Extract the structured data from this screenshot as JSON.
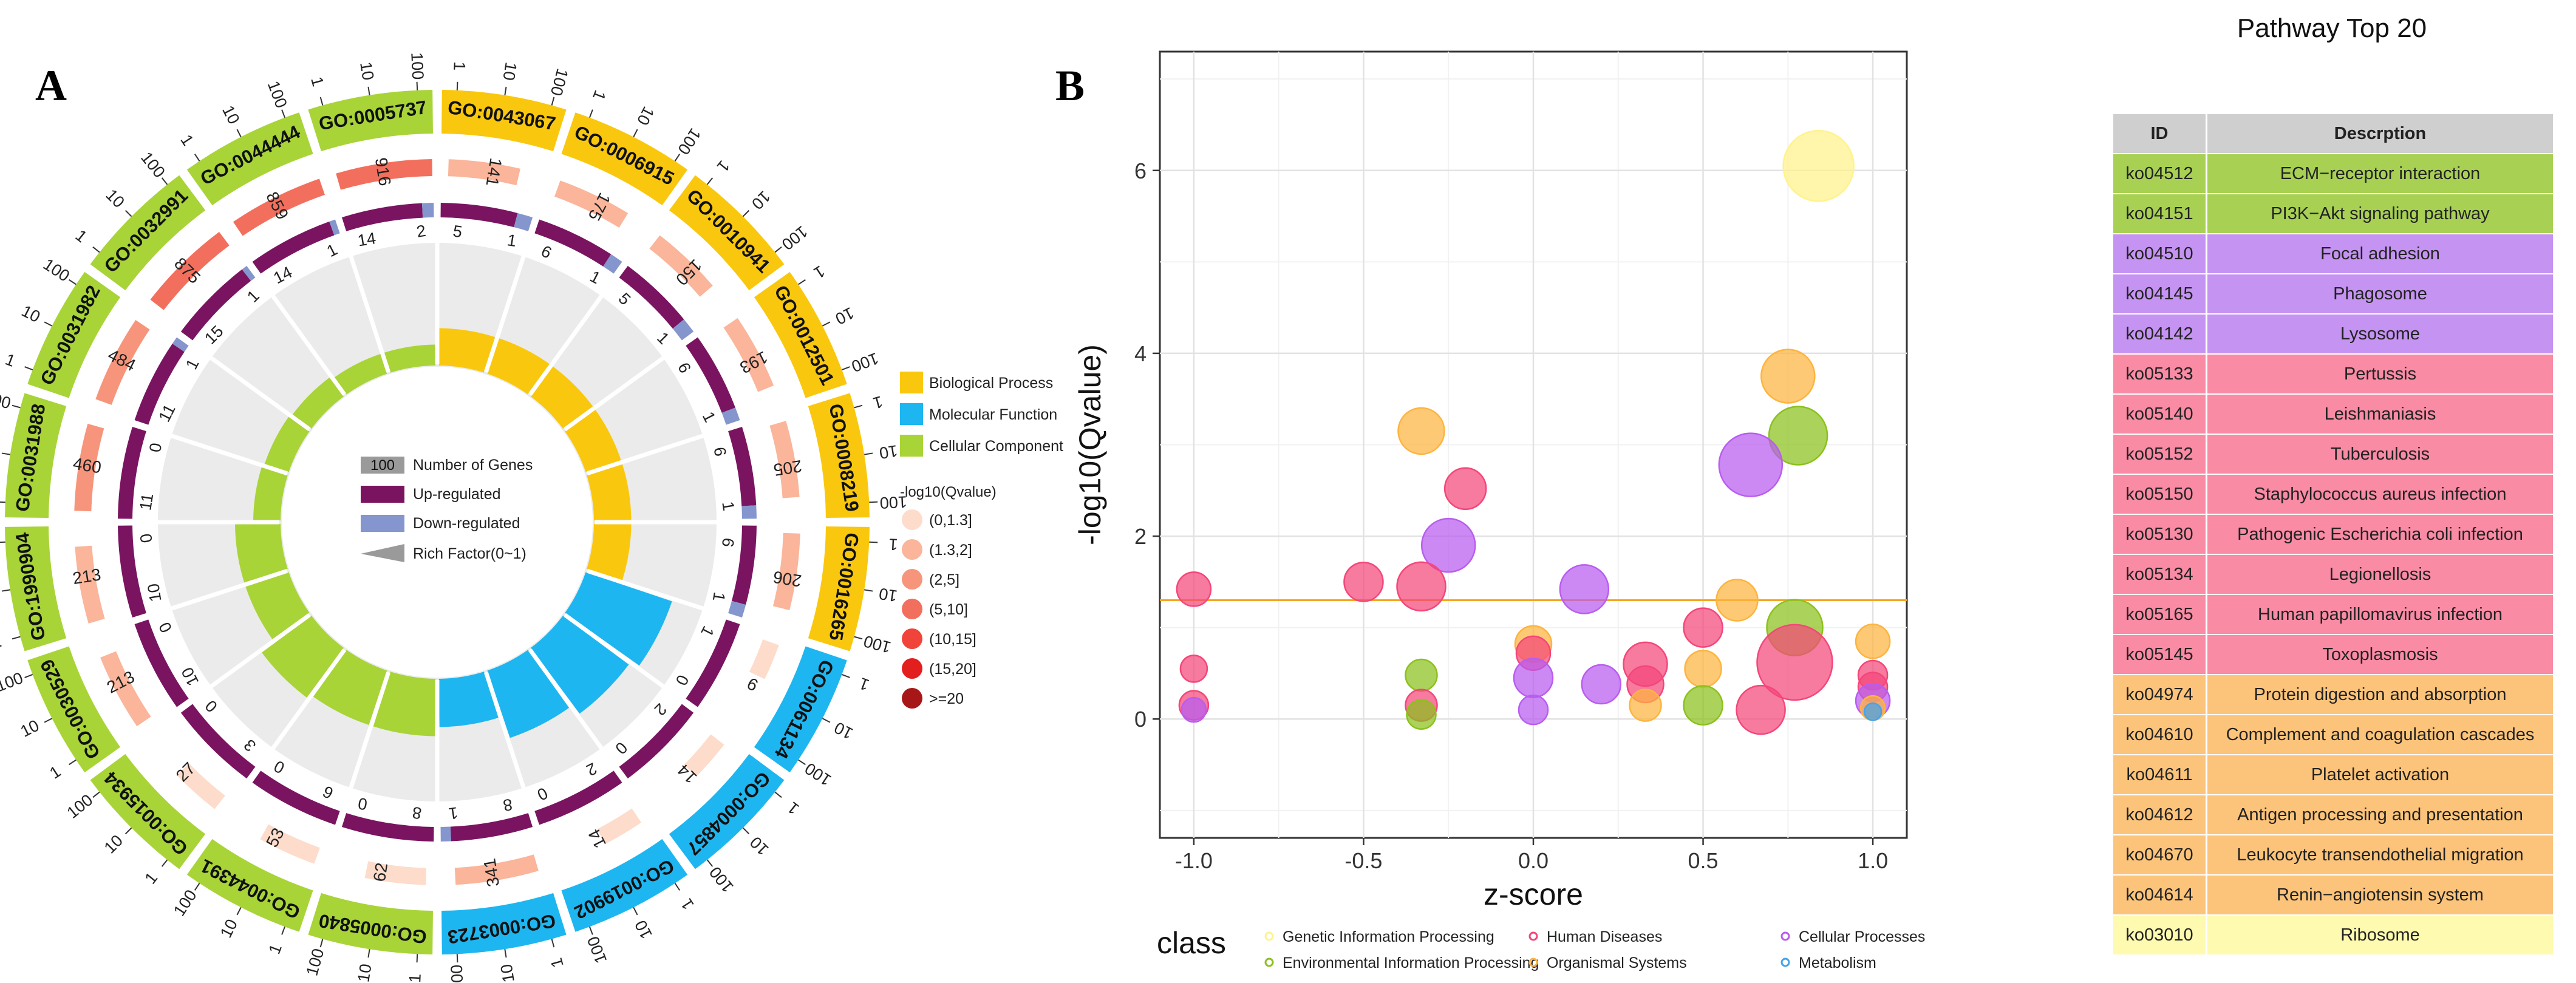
{
  "panel_a_label": "A",
  "panel_b_label": "B",
  "table_title": "Pathway Top 20",
  "chart_data": [
    {
      "type": "circular-go",
      "go_terms": [
        {
          "id": "GO:0043067",
          "cat": "bp",
          "genes": 141,
          "up": 5,
          "down": 1,
          "rich": 0.33
        },
        {
          "id": "GO:0006915",
          "cat": "bp",
          "genes": 175,
          "up": 6,
          "down": 1,
          "rich": 0.33
        },
        {
          "id": "GO:0010941",
          "cat": "bp",
          "genes": 150,
          "up": 5,
          "down": 1,
          "rich": 0.33
        },
        {
          "id": "GO:0012501",
          "cat": "bp",
          "genes": 193,
          "up": 6,
          "down": 1,
          "rich": 0.33
        },
        {
          "id": "GO:0008219",
          "cat": "bp",
          "genes": 205,
          "up": 6,
          "down": 1,
          "rich": 0.33
        },
        {
          "id": "GO:0016265",
          "cat": "bp",
          "genes": 206,
          "up": 6,
          "down": 1,
          "rich": 0.33
        },
        {
          "id": "GO:0061134",
          "cat": "mf",
          "genes": 9,
          "up": 1,
          "down": 0,
          "rich": 0.92
        },
        {
          "id": "GO:0004857",
          "cat": "mf",
          "genes": 14,
          "up": 2,
          "down": 0,
          "rich": 0.82
        },
        {
          "id": "GO:0019902",
          "cat": "mf",
          "genes": 14,
          "up": 2,
          "down": 0,
          "rich": 0.7
        },
        {
          "id": "GO:0003723",
          "cat": "mf",
          "genes": 341,
          "up": 8,
          "down": 1,
          "rich": 0.45
        },
        {
          "id": "GO:0005840",
          "cat": "cc",
          "genes": 62,
          "up": 8,
          "down": 0,
          "rich": 0.55
        },
        {
          "id": "GO:0044391",
          "cat": "cc",
          "genes": 53,
          "up": 6,
          "down": 0,
          "rich": 0.55
        },
        {
          "id": "GO:0015934",
          "cat": "cc",
          "genes": 27,
          "up": 3,
          "down": 0,
          "rich": 0.6
        },
        {
          "id": "GO:0030529",
          "cat": "cc",
          "genes": 213,
          "up": 10,
          "down": 0,
          "rich": 0.42
        },
        {
          "id": "GO:1990904",
          "cat": "cc",
          "genes": 213,
          "up": 10,
          "down": 0,
          "rich": 0.42
        },
        {
          "id": "GO:0031988",
          "cat": "cc",
          "genes": 460,
          "up": 11,
          "down": 0,
          "rich": 0.22
        },
        {
          "id": "GO:0031982",
          "cat": "cc",
          "genes": 484,
          "up": 11,
          "down": 1,
          "rich": 0.2
        },
        {
          "id": "GO:0032991",
          "cat": "cc",
          "genes": 875,
          "up": 15,
          "down": 1,
          "rich": 0.18
        },
        {
          "id": "GO:0044444",
          "cat": "cc",
          "genes": 859,
          "up": 14,
          "down": 1,
          "rich": 0.15
        },
        {
          "id": "GO:0005737",
          "cat": "cc",
          "genes": 916,
          "up": 14,
          "down": 2,
          "rich": 0.15
        }
      ],
      "gene_count_values": [
        141,
        175,
        150,
        193,
        205,
        206,
        9,
        14,
        14,
        341,
        62,
        53,
        27,
        213,
        213,
        460,
        484,
        875,
        859,
        916
      ],
      "up_regulated_values": [
        5,
        6,
        5,
        6,
        6,
        6,
        1,
        2,
        2,
        8,
        8,
        6,
        3,
        10,
        10,
        11,
        11,
        15,
        14,
        14
      ],
      "down_regulated_values": [
        1,
        1,
        1,
        1,
        1,
        1,
        0,
        0,
        0,
        1,
        0,
        0,
        0,
        0,
        0,
        0,
        1,
        1,
        1,
        2
      ],
      "ticks": [
        "1",
        "10",
        "100"
      ],
      "legend_categories": [
        {
          "label": "Biological Process",
          "color": "#F9C80E"
        },
        {
          "label": "Molecular Function",
          "color": "#1EB6F0"
        },
        {
          "label": "Cellular Component",
          "color": "#A8D438"
        }
      ],
      "qvalue_title": "-log10(Qvalue)",
      "qvalue_bins": [
        {
          "label": "(0,1.3]",
          "color": "#FDDCCB"
        },
        {
          "label": "(1.3,2]",
          "color": "#FAB59A"
        },
        {
          "label": "(2,5]",
          "color": "#F6957B"
        },
        {
          "label": "(5,10]",
          "color": "#F36F5D"
        },
        {
          "label": "(10,15]",
          "color": "#F0443A"
        },
        {
          "label": "(15,20]",
          "color": "#E31E1E"
        },
        {
          "label": ">=20",
          "color": "#A81717"
        }
      ],
      "center_legend": {
        "number_badge": "100",
        "number_label": "Number of Genes",
        "up_label": "Up-regulated",
        "down_label": "Down-regulated",
        "rich_label": "Rich Factor(0~1)"
      },
      "colors": {
        "up": "#7A1460",
        "down": "#8596CE",
        "bp": "#F9C80E",
        "mf": "#1EB6F0",
        "cc": "#A8D438"
      }
    },
    {
      "type": "scatter",
      "xlabel": "z-score",
      "ylabel": "-log10(Qvalue)",
      "xlim": [
        -1.1,
        1.1
      ],
      "ylim": [
        -1.3,
        7.3
      ],
      "x_ticks": [
        -1.0,
        -0.5,
        0.0,
        0.5,
        1.0
      ],
      "x_tick_labels": [
        "-1.0",
        "-0.5",
        "0.0",
        "0.5",
        "1.0"
      ],
      "y_ticks": [
        0,
        2,
        4,
        6
      ],
      "y_tick_labels": [
        "0",
        "2",
        "4",
        "6"
      ],
      "threshold_y": 1.3,
      "legend_title": "class",
      "classes": [
        {
          "label": "Genetic Information Processing",
          "color": "#FFF38A"
        },
        {
          "label": "Environmental Information Processing",
          "color": "#8BC11C"
        },
        {
          "label": "Human Diseases",
          "color": "#F4467A"
        },
        {
          "label": "Organismal Systems",
          "color": "#FDB43E"
        },
        {
          "label": "Cellular Processes",
          "color": "#B95CF0"
        },
        {
          "label": "Metabolism",
          "color": "#45A4E8"
        }
      ],
      "points": [
        {
          "x": 0.84,
          "y": 6.05,
          "r": 58,
          "cls": 0
        },
        {
          "x": 0.75,
          "y": 3.75,
          "r": 44,
          "cls": 3
        },
        {
          "x": 0.78,
          "y": 3.1,
          "r": 48,
          "cls": 1
        },
        {
          "x": 0.64,
          "y": 2.78,
          "r": 52,
          "cls": 4
        },
        {
          "x": -0.33,
          "y": 3.15,
          "r": 38,
          "cls": 3
        },
        {
          "x": -0.2,
          "y": 2.52,
          "r": 34,
          "cls": 2
        },
        {
          "x": -0.25,
          "y": 1.9,
          "r": 44,
          "cls": 4
        },
        {
          "x": 0.15,
          "y": 1.42,
          "r": 40,
          "cls": 4
        },
        {
          "x": -1.0,
          "y": 1.42,
          "r": 28,
          "cls": 2
        },
        {
          "x": -0.5,
          "y": 1.5,
          "r": 32,
          "cls": 2
        },
        {
          "x": -0.33,
          "y": 1.45,
          "r": 40,
          "cls": 2
        },
        {
          "x": 0.6,
          "y": 1.3,
          "r": 34,
          "cls": 3
        },
        {
          "x": 0.77,
          "y": 1.0,
          "r": 46,
          "cls": 1
        },
        {
          "x": 0.5,
          "y": 1.0,
          "r": 32,
          "cls": 2
        },
        {
          "x": 0.0,
          "y": 0.82,
          "r": 30,
          "cls": 3
        },
        {
          "x": 0.0,
          "y": 0.72,
          "r": 28,
          "cls": 2
        },
        {
          "x": 1.0,
          "y": 0.85,
          "r": 28,
          "cls": 3
        },
        {
          "x": 0.77,
          "y": 0.62,
          "r": 62,
          "cls": 2
        },
        {
          "x": 0.33,
          "y": 0.6,
          "r": 36,
          "cls": 2
        },
        {
          "x": 0.5,
          "y": 0.55,
          "r": 30,
          "cls": 3
        },
        {
          "x": 0.0,
          "y": 0.45,
          "r": 32,
          "cls": 4
        },
        {
          "x": 0.2,
          "y": 0.38,
          "r": 32,
          "cls": 4
        },
        {
          "x": 0.33,
          "y": 0.38,
          "r": 30,
          "cls": 2
        },
        {
          "x": -0.33,
          "y": 0.48,
          "r": 26,
          "cls": 1
        },
        {
          "x": -1.0,
          "y": 0.55,
          "r": 22,
          "cls": 2
        },
        {
          "x": 1.0,
          "y": 0.48,
          "r": 24,
          "cls": 2
        },
        {
          "x": 1.0,
          "y": 0.35,
          "r": 24,
          "cls": 2
        },
        {
          "x": 0.5,
          "y": 0.15,
          "r": 32,
          "cls": 1
        },
        {
          "x": 0.67,
          "y": 0.1,
          "r": 40,
          "cls": 2
        },
        {
          "x": -0.33,
          "y": 0.15,
          "r": 26,
          "cls": 2
        },
        {
          "x": -0.33,
          "y": 0.05,
          "r": 24,
          "cls": 1
        },
        {
          "x": -1.0,
          "y": 0.15,
          "r": 24,
          "cls": 2
        },
        {
          "x": -1.0,
          "y": 0.1,
          "r": 20,
          "cls": 4
        },
        {
          "x": 0.0,
          "y": 0.1,
          "r": 24,
          "cls": 4
        },
        {
          "x": 0.33,
          "y": 0.15,
          "r": 26,
          "cls": 3
        },
        {
          "x": 1.0,
          "y": 0.2,
          "r": 28,
          "cls": 4
        },
        {
          "x": 1.0,
          "y": 0.12,
          "r": 20,
          "cls": 3
        },
        {
          "x": 1.0,
          "y": 0.08,
          "r": 14,
          "cls": 5
        }
      ]
    },
    {
      "type": "table",
      "columns": [
        "ID",
        "Descrption"
      ],
      "rows": [
        {
          "id": "ko04512",
          "desc": "ECM−receptor interaction",
          "color": "#A8D154"
        },
        {
          "id": "ko04151",
          "desc": "PI3K−Akt signaling pathway",
          "color": "#A8D154"
        },
        {
          "id": "ko04510",
          "desc": "Focal adhesion",
          "color": "#C593F2"
        },
        {
          "id": "ko04145",
          "desc": "Phagosome",
          "color": "#C593F2"
        },
        {
          "id": "ko04142",
          "desc": "Lysosome",
          "color": "#C593F2"
        },
        {
          "id": "ko05133",
          "desc": "Pertussis",
          "color": "#F98BA5"
        },
        {
          "id": "ko05140",
          "desc": "Leishmaniasis",
          "color": "#F98BA5"
        },
        {
          "id": "ko05152",
          "desc": "Tuberculosis",
          "color": "#F98BA5"
        },
        {
          "id": "ko05150",
          "desc": "Staphylococcus aureus infection",
          "color": "#F98BA5"
        },
        {
          "id": "ko05130",
          "desc": "Pathogenic Escherichia coli infection",
          "color": "#F98BA5"
        },
        {
          "id": "ko05134",
          "desc": "Legionellosis",
          "color": "#F98BA5"
        },
        {
          "id": "ko05165",
          "desc": "Human papillomavirus infection",
          "color": "#F98BA5"
        },
        {
          "id": "ko05145",
          "desc": "Toxoplasmosis",
          "color": "#F98BA5"
        },
        {
          "id": "ko04974",
          "desc": "Protein digestion and absorption",
          "color": "#FCC47A"
        },
        {
          "id": "ko04610",
          "desc": "Complement and coagulation cascades",
          "color": "#FCC47A"
        },
        {
          "id": "ko04611",
          "desc": "Platelet activation",
          "color": "#FCC47A"
        },
        {
          "id": "ko04612",
          "desc": "Antigen processing and presentation",
          "color": "#FCC47A"
        },
        {
          "id": "ko04670",
          "desc": "Leukocyte transendothelial migration",
          "color": "#FCC47A"
        },
        {
          "id": "ko04614",
          "desc": "Renin−angiotensin system",
          "color": "#FCC47A"
        },
        {
          "id": "ko03010",
          "desc": "Ribosome",
          "color": "#FEFAB0"
        }
      ]
    }
  ]
}
